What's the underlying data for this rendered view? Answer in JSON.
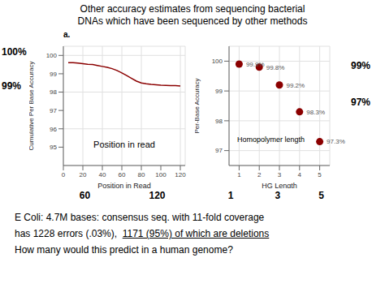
{
  "title": "Other accuracy estimates from sequencing bacterial\nDNAs which have been sequenced by other methods",
  "subtitle": "a.",
  "annotations": [
    "E Coli: 4.7M bases: consensus seq. with 11-fold coverage",
    "has 1228 errors (.03%),  1171 (95%) of which are deletions",
    "How many would this predict in a human genome?"
  ],
  "underlined": "1171 (95%) of which are deletions",
  "chart_data": [
    {
      "type": "line",
      "xlabel": "Position in Read",
      "ylabel": "Cumulative Per Base Accuracy",
      "x": [
        5,
        10,
        15,
        20,
        25,
        30,
        35,
        40,
        45,
        50,
        55,
        60,
        65,
        70,
        75,
        80,
        85,
        90,
        95,
        100,
        105,
        110,
        115,
        120
      ],
      "values": [
        99.6,
        99.6,
        99.58,
        99.55,
        99.52,
        99.5,
        99.45,
        99.4,
        99.35,
        99.28,
        99.18,
        99.05,
        98.9,
        98.75,
        98.6,
        98.5,
        98.45,
        98.42,
        98.4,
        98.38,
        98.37,
        98.36,
        98.35,
        98.33
      ],
      "color": "#8B0000",
      "xlim": [
        0,
        125
      ],
      "ylim": [
        94,
        100.5
      ],
      "xticks": [
        0,
        20,
        40,
        60,
        80,
        100,
        120
      ],
      "yticks": [
        95,
        96,
        97,
        98,
        99,
        100
      ],
      "grid": true,
      "annotations": [
        "100%",
        "99%",
        "60",
        "120",
        "Position in read"
      ]
    },
    {
      "type": "scatter",
      "xlabel": "HG Length",
      "ylabel": "Per-Base Accuracy",
      "x": [
        1,
        2,
        3,
        4,
        5
      ],
      "values": [
        99.9,
        99.8,
        99.2,
        98.3,
        97.3
      ],
      "value_labels": [
        "99.9%",
        "99.8%",
        "99.2%",
        "98.3%",
        "97.3%"
      ],
      "data_labels": true,
      "color": "#8B0000",
      "xlim": [
        0.5,
        5.5
      ],
      "ylim": [
        96.5,
        100.5
      ],
      "xticks": [
        1,
        2,
        3,
        4,
        5
      ],
      "yticks": [
        97,
        98,
        99,
        100
      ],
      "grid": true,
      "annotations": [
        "99%",
        "97%",
        "1",
        "3",
        "5",
        "Homopolymer length"
      ]
    }
  ]
}
